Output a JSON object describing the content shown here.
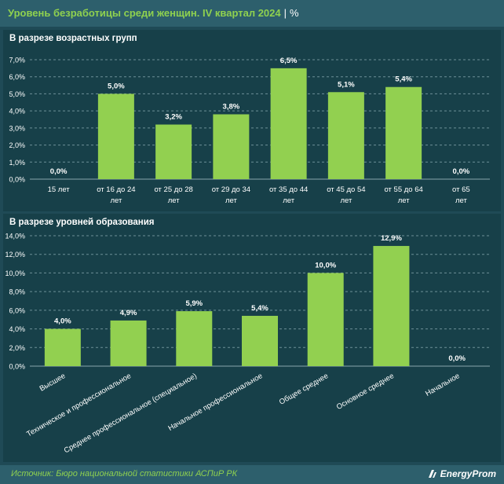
{
  "header": {
    "title": "Уровень безработицы среди женщин. IV квартал 2024",
    "separator": "|",
    "unit": "%"
  },
  "footer": {
    "source": "Источник: Бюро национальной статистики АСПиР РК",
    "brand": "EnergyProm"
  },
  "colors": {
    "bar": "#92d050",
    "background": "#1f4a56",
    "panel": "#174049",
    "accent_text": "#8fd14f"
  },
  "chart_data": [
    {
      "type": "bar",
      "title": "В разрезе возрастных групп",
      "categories": [
        "15 лет",
        "от 16 до 24 лет",
        "от 25 до 28 лет",
        "от 29 до 34 лет",
        "от 35 до 44 лет",
        "от 45 до 54 лет",
        "от 55 до 64 лет",
        "от 65 лет"
      ],
      "values": [
        0.0,
        5.0,
        3.2,
        3.8,
        6.5,
        5.1,
        5.4,
        0.0
      ],
      "value_labels": [
        "0,0%",
        "5,0%",
        "3,2%",
        "3,8%",
        "6,5%",
        "5,1%",
        "5,4%",
        "0,0%"
      ],
      "yticks": [
        "0,0%",
        "1,0%",
        "2,0%",
        "3,0%",
        "4,0%",
        "5,0%",
        "6,0%",
        "7,0%"
      ],
      "ylim": [
        0,
        7
      ],
      "grid": true,
      "xlabel": "",
      "ylabel": ""
    },
    {
      "type": "bar",
      "title": "В разрезе уровней образования",
      "categories": [
        "Высшее",
        "Техническое и профессиональное",
        "Среднее профессиональное (специальное)",
        "Начальное профессиональное",
        "Общее среднее",
        "Основное среднее",
        "Начальное"
      ],
      "values": [
        4.0,
        4.9,
        5.9,
        5.4,
        10.0,
        12.9,
        0.0
      ],
      "value_labels": [
        "4,0%",
        "4,9%",
        "5,9%",
        "5,4%",
        "10,0%",
        "12,9%",
        "0,0%"
      ],
      "yticks": [
        "0,0%",
        "2,0%",
        "4,0%",
        "6,0%",
        "8,0%",
        "10,0%",
        "12,0%",
        "14,0%"
      ],
      "ylim": [
        0,
        14
      ],
      "grid": true,
      "xlabel": "",
      "ylabel": ""
    }
  ]
}
